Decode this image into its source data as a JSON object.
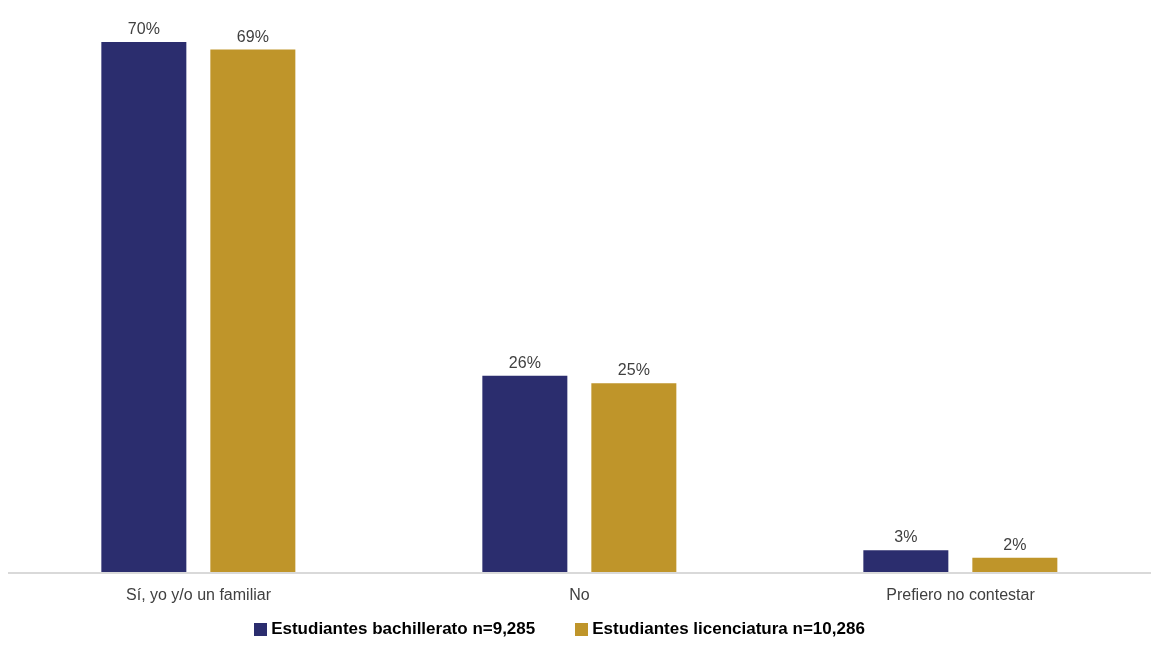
{
  "chart_data": {
    "type": "bar",
    "categories": [
      "Sí, yo y/o un familiar",
      "No",
      "Prefiero no contestar"
    ],
    "series": [
      {
        "name": "Estudiantes bachillerato n=9,285",
        "color": "#2b2d6e",
        "values": [
          70,
          26,
          3
        ],
        "value_labels": [
          "70%",
          "26%",
          "3%"
        ]
      },
      {
        "name": "Estudiantes licenciatura n=10,286",
        "color": "#bf952a",
        "values": [
          69,
          25,
          2
        ],
        "value_labels": [
          "69%",
          "25%",
          "2%"
        ]
      }
    ],
    "legend": "bottom",
    "grid": false
  }
}
